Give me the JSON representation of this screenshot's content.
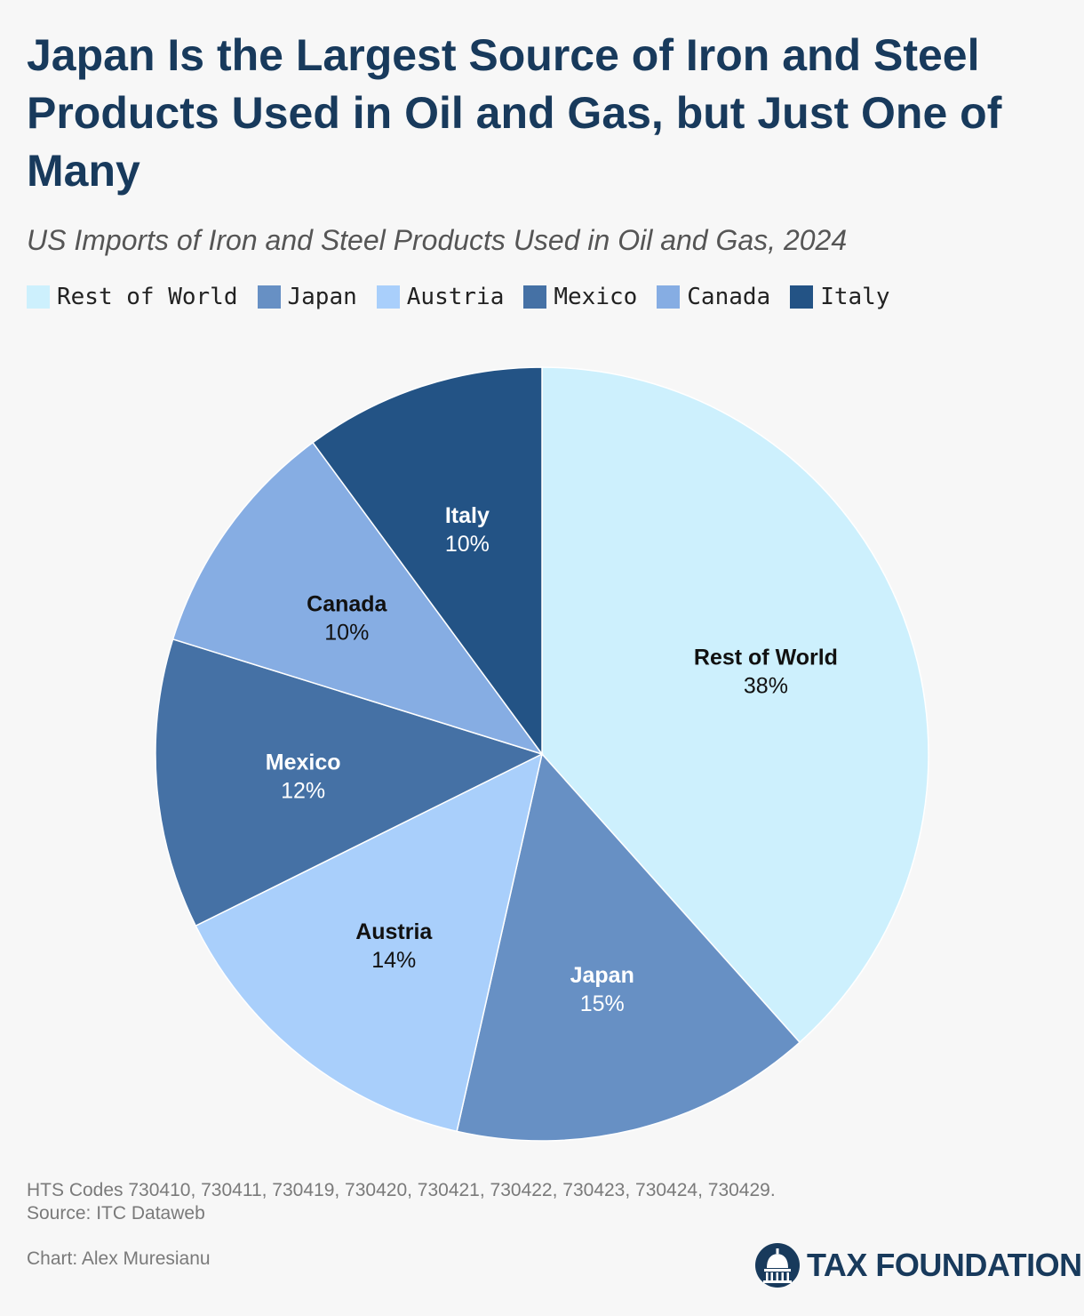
{
  "header": {
    "title": "Japan Is the Largest Source of Iron and Steel Products Used in Oil and Gas, but Just One of Many",
    "subtitle": "US Imports of Iron and Steel Products Used in Oil and Gas, 2024"
  },
  "chart_data": {
    "type": "pie",
    "title": "Japan Is the Largest Source of Iron and Steel Products Used in Oil and Gas, but Just One of Many",
    "subtitle": "US Imports of Iron and Steel Products Used in Oil and Gas, 2024",
    "legend_placement": "top",
    "slices": [
      {
        "name": "Rest of World",
        "value": 38,
        "label": "38%",
        "color": "#cdf0fd",
        "text_color": "#111111"
      },
      {
        "name": "Japan",
        "value": 15,
        "label": "15%",
        "color": "#6790c4",
        "text_color": "#ffffff"
      },
      {
        "name": "Austria",
        "value": 14,
        "label": "14%",
        "color": "#a9cffb",
        "text_color": "#111111"
      },
      {
        "name": "Mexico",
        "value": 12,
        "label": "12%",
        "color": "#4571a5",
        "text_color": "#ffffff"
      },
      {
        "name": "Canada",
        "value": 10,
        "label": "10%",
        "color": "#86ade3",
        "text_color": "#111111"
      },
      {
        "name": "Italy",
        "value": 10,
        "label": "10%",
        "color": "#235385",
        "text_color": "#ffffff"
      }
    ]
  },
  "footer": {
    "notes": "HTS Codes 730410, 730411, 730419, 730420, 730421, 730422, 730423, 730424, 730429.",
    "source": "Source: ITC Dataweb",
    "credit": "Chart: Alex Muresianu",
    "brand": "TAX FOUNDATION",
    "brand_color": "#183a5c"
  }
}
